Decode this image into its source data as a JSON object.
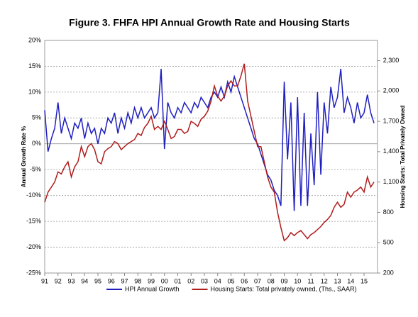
{
  "chart_data": {
    "type": "line",
    "title": "Figure 3. FHFA HPI Annual Growth Rate and Housing Starts",
    "y_label": "Annual Growth Rate %",
    "y2_label": "Housing Starts: Total Privately Owned",
    "x": [
      1991,
      1991.25,
      1991.5,
      1991.75,
      1992,
      1992.25,
      1992.5,
      1992.75,
      1993,
      1993.25,
      1993.5,
      1993.75,
      1994,
      1994.25,
      1994.5,
      1994.75,
      1995,
      1995.25,
      1995.5,
      1995.75,
      1996,
      1996.25,
      1996.5,
      1996.75,
      1997,
      1997.25,
      1997.5,
      1997.75,
      1998,
      1998.25,
      1998.5,
      1998.75,
      1999,
      1999.25,
      1999.5,
      1999.75,
      2000,
      2000.25,
      2000.5,
      2000.75,
      2001,
      2001.25,
      2001.5,
      2001.75,
      2002,
      2002.25,
      2002.5,
      2002.75,
      2003,
      2003.25,
      2003.5,
      2003.75,
      2004,
      2004.25,
      2004.5,
      2004.75,
      2005,
      2005.25,
      2005.5,
      2005.75,
      2006,
      2006.25,
      2006.5,
      2006.75,
      2007,
      2007.25,
      2007.5,
      2007.75,
      2008,
      2008.25,
      2008.5,
      2008.75,
      2009,
      2009.25,
      2009.5,
      2009.75,
      2010,
      2010.25,
      2010.5,
      2010.75,
      2011,
      2011.25,
      2011.5,
      2011.75,
      2012,
      2012.25,
      2012.5,
      2012.75,
      2013,
      2013.25,
      2013.5,
      2013.75,
      2014,
      2014.25,
      2014.5,
      2014.75,
      2015,
      2015.25,
      2015.5,
      2015.75
    ],
    "series": [
      {
        "name": "HPI Annual Growth",
        "color": "#1f1fbf",
        "values": [
          6.5,
          -1.5,
          1,
          3,
          8,
          2,
          5,
          3,
          1,
          4,
          3,
          5,
          1,
          4,
          2,
          3,
          0,
          3,
          2,
          5,
          4,
          6,
          2,
          5,
          3,
          6,
          4,
          7,
          5,
          7,
          5,
          6,
          7,
          5,
          6,
          14.5,
          -1,
          8,
          6,
          5,
          7,
          6,
          8,
          7,
          6,
          8,
          7,
          9,
          8,
          7,
          9,
          10,
          9,
          11,
          9,
          12,
          10,
          13,
          11,
          9,
          7,
          5,
          3,
          1,
          0,
          -2,
          -4,
          -6,
          -7,
          -9,
          -10,
          -12,
          12,
          -3,
          8,
          -13,
          9,
          -12,
          6,
          -12,
          2,
          -8,
          10,
          -6,
          8,
          2,
          11,
          7,
          9,
          14.5,
          6,
          9,
          7,
          4,
          8,
          5,
          6,
          9.5,
          6,
          4
        ]
      },
      {
        "name": "Housing Starts: Total privately owned, (Ths., SAAR)",
        "color": "#b01c1c",
        "axis": "y2",
        "values": [
          900,
          1000,
          1050,
          1100,
          1200,
          1180,
          1250,
          1300,
          1150,
          1250,
          1300,
          1450,
          1350,
          1450,
          1480,
          1420,
          1300,
          1280,
          1400,
          1430,
          1450,
          1500,
          1480,
          1420,
          1450,
          1480,
          1500,
          1520,
          1580,
          1560,
          1640,
          1680,
          1750,
          1620,
          1650,
          1620,
          1700,
          1620,
          1530,
          1550,
          1620,
          1620,
          1580,
          1600,
          1700,
          1680,
          1650,
          1720,
          1750,
          1800,
          1900,
          2050,
          1950,
          1900,
          1950,
          2050,
          2100,
          2050,
          2050,
          2150,
          2270,
          1900,
          1750,
          1600,
          1450,
          1450,
          1300,
          1150,
          1050,
          1000,
          800,
          650,
          520,
          550,
          600,
          570,
          600,
          620,
          580,
          540,
          580,
          600,
          630,
          660,
          700,
          730,
          770,
          850,
          900,
          850,
          880,
          1000,
          950,
          1000,
          1020,
          1050,
          1000,
          1150,
          1050,
          1100
        ]
      }
    ],
    "xlim": [
      1991,
      2016
    ],
    "xticks": [
      {
        "value": 1991,
        "label": "91"
      },
      {
        "value": 1992,
        "label": "92"
      },
      {
        "value": 1993,
        "label": "93"
      },
      {
        "value": 1994,
        "label": "94"
      },
      {
        "value": 1995,
        "label": "95"
      },
      {
        "value": 1996,
        "label": "96"
      },
      {
        "value": 1997,
        "label": "97"
      },
      {
        "value": 1998,
        "label": "98"
      },
      {
        "value": 1999,
        "label": "99"
      },
      {
        "value": 2000,
        "label": "00"
      },
      {
        "value": 2001,
        "label": "01"
      },
      {
        "value": 2002,
        "label": "02"
      },
      {
        "value": 2003,
        "label": "03"
      },
      {
        "value": 2004,
        "label": "04"
      },
      {
        "value": 2005,
        "label": "05"
      },
      {
        "value": 2006,
        "label": "06"
      },
      {
        "value": 2007,
        "label": "07"
      },
      {
        "value": 2008,
        "label": "08"
      },
      {
        "value": 2009,
        "label": "09"
      },
      {
        "value": 2010,
        "label": "10"
      },
      {
        "value": 2011,
        "label": "11"
      },
      {
        "value": 2012,
        "label": "12"
      },
      {
        "value": 2013,
        "label": "13"
      },
      {
        "value": 2014,
        "label": "14"
      },
      {
        "value": 2015,
        "label": "15"
      }
    ],
    "ylim": [
      -25,
      20
    ],
    "yticks": [
      {
        "value": -25,
        "label": "-25%"
      },
      {
        "value": -20,
        "label": "-20%"
      },
      {
        "value": -15,
        "label": "-15%"
      },
      {
        "value": -10,
        "label": "-10%"
      },
      {
        "value": -5,
        "label": "-5%"
      },
      {
        "value": 0,
        "label": "0%"
      },
      {
        "value": 5,
        "label": "5%"
      },
      {
        "value": 10,
        "label": "10%"
      },
      {
        "value": 15,
        "label": "15%"
      },
      {
        "value": 20,
        "label": "20%"
      }
    ],
    "y2lim": [
      200,
      2500
    ],
    "y2ticks": [
      200,
      500,
      800,
      {
        "value": 1100,
        "label": "1,100"
      },
      {
        "value": 1400,
        "label": "1,400"
      },
      {
        "value": 1700,
        "label": "1,700"
      },
      {
        "value": 2000,
        "label": "2,000"
      },
      {
        "value": 2300,
        "label": "2,300"
      }
    ],
    "grid": true,
    "legend": "bottom"
  }
}
